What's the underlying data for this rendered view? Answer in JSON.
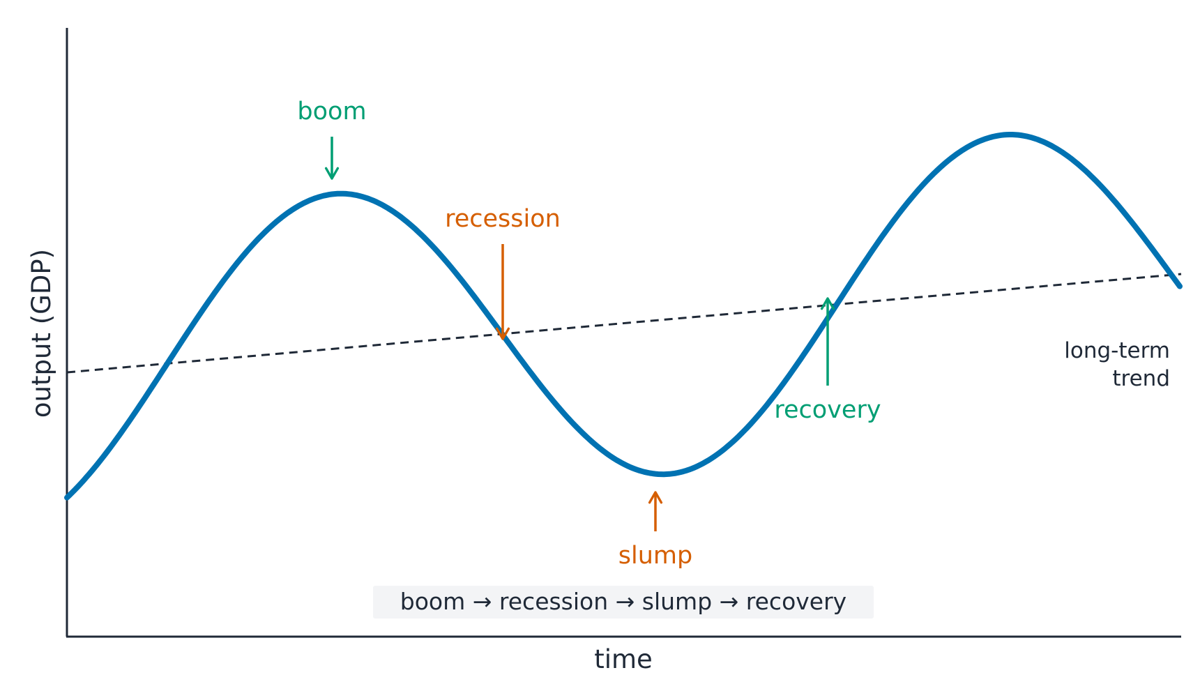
{
  "axes": {
    "x_label": "time",
    "y_label": "output (GDP)"
  },
  "phases": {
    "boom": "boom",
    "recession": "recession",
    "slump": "slump",
    "recovery": "recovery"
  },
  "trend_label": [
    "long-term",
    "trend"
  ],
  "caption": "boom → recession → slump → recovery",
  "colors": {
    "cycle_line": "#0072b2",
    "trend_line": "#1f2937",
    "boom_recovery_accent": "#009e73",
    "recession_slump_accent": "#d55e00",
    "axis": "#1f2937",
    "caption_background": "#f3f4f6"
  }
}
